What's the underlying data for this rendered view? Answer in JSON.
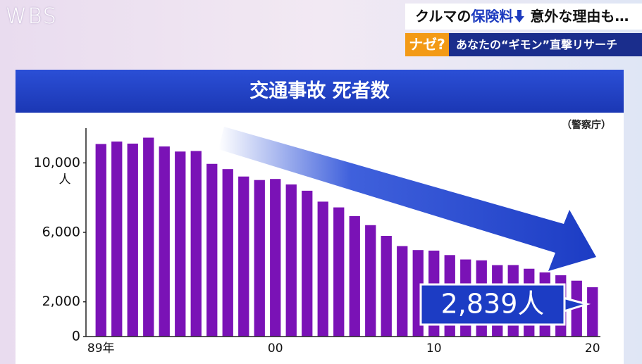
{
  "logo": "WBS",
  "banner": {
    "headline_before": "クルマの",
    "headline_highlight": "保険料",
    "headline_after": "意外な理由も…",
    "tag": "ナゼ?",
    "series_title": "あなたの“ギモン”直撃リサーチ"
  },
  "chart_data": {
    "type": "bar",
    "title": "交通事故 死者数",
    "source": "（警察庁）",
    "categories": [
      "89年",
      null,
      null,
      null,
      null,
      null,
      null,
      null,
      null,
      null,
      null,
      "00",
      null,
      null,
      null,
      null,
      null,
      null,
      null,
      null,
      null,
      "10",
      null,
      null,
      null,
      null,
      null,
      null,
      null,
      null,
      null,
      "20"
    ],
    "values": [
      11086,
      11227,
      11109,
      11452,
      10945,
      10653,
      10684,
      9943,
      9642,
      9214,
      9012,
      9073,
      8757,
      8396,
      7768,
      7436,
      6937,
      6415,
      5796,
      5209,
      4979,
      4948,
      4691,
      4438,
      4388,
      4113,
      4117,
      3904,
      3694,
      3532,
      3215,
      2839
    ],
    "color": "#7a12b6",
    "ylim": [
      0,
      12000
    ],
    "yticks": [
      0,
      {
        "value": 2000,
        "label": "2,000"
      },
      {
        "value": 6000,
        "label": "6,000"
      },
      {
        "value": 10000,
        "label": "10,000"
      }
    ],
    "y_unit": "人",
    "grid": false,
    "annotation": "2,839人"
  }
}
